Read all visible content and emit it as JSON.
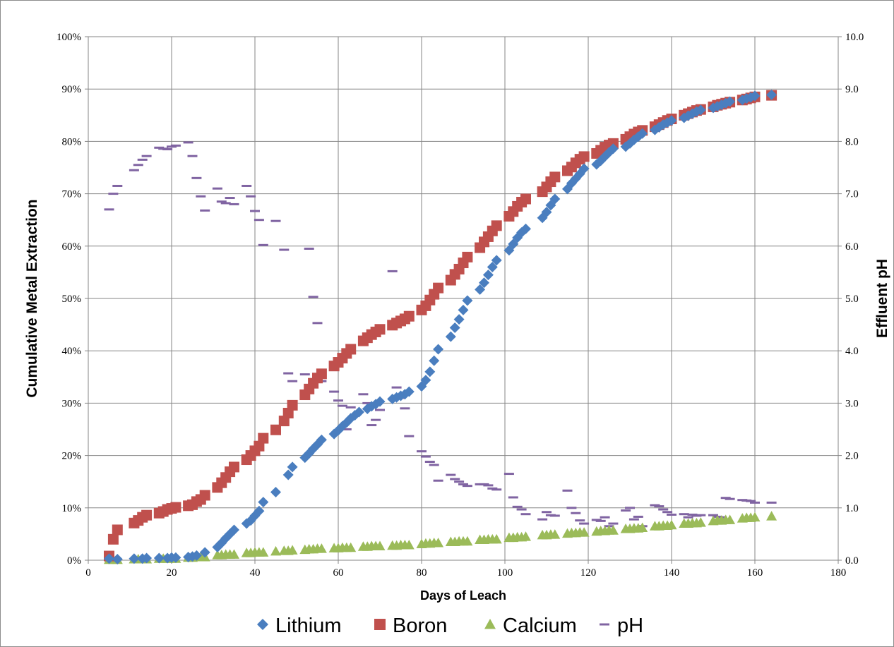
{
  "chart_data": {
    "type": "scatter",
    "xlabel": "Days of Leach",
    "ylabel": "Cumulative Metal Extraction",
    "y2label": "Effluent pH",
    "xlim": [
      0,
      180
    ],
    "ylim": [
      0,
      100
    ],
    "y2lim": [
      0,
      10
    ],
    "x_ticks": [
      "0",
      "20",
      "40",
      "60",
      "80",
      "100",
      "120",
      "140",
      "160",
      "180"
    ],
    "y_ticks": [
      "0%",
      "10%",
      "20%",
      "30%",
      "40%",
      "50%",
      "60%",
      "70%",
      "80%",
      "90%",
      "100%"
    ],
    "y2_ticks": [
      "0.0",
      "1.0",
      "2.0",
      "3.0",
      "4.0",
      "5.0",
      "6.0",
      "7.0",
      "8.0",
      "9.0",
      "10.0"
    ],
    "grid": true,
    "legend_position": "bottom",
    "series": [
      {
        "name": "Lithium",
        "axis": "left",
        "marker": "diamond",
        "color": "#4a7ebf",
        "x": [
          5,
          7,
          11,
          13,
          14,
          17,
          19,
          20,
          21,
          24,
          25,
          26,
          28,
          31,
          32,
          33,
          34,
          35,
          38,
          39,
          40,
          41,
          42,
          45,
          48,
          49,
          52,
          53,
          54,
          55,
          56,
          59,
          60,
          61,
          62,
          63,
          64,
          65,
          67,
          68,
          69,
          70,
          73,
          74,
          75,
          76,
          77,
          80,
          81,
          82,
          83,
          84,
          87,
          88,
          89,
          90,
          91,
          94,
          95,
          96,
          97,
          98,
          101,
          102,
          103,
          104,
          105,
          109,
          110,
          111,
          112,
          115,
          116,
          117,
          118,
          119,
          122,
          123,
          124,
          125,
          126,
          129,
          130,
          131,
          132,
          133,
          136,
          137,
          138,
          139,
          140,
          143,
          144,
          145,
          146,
          147,
          150,
          151,
          152,
          153,
          154,
          157,
          158,
          159,
          160,
          164
        ],
        "y": [
          0.3,
          0.2,
          0.3,
          0.3,
          0.4,
          0.4,
          0.4,
          0.5,
          0.5,
          0.6,
          0.7,
          0.9,
          1.5,
          2.5,
          3.3,
          4.2,
          5.0,
          5.8,
          7.0,
          7.6,
          8.5,
          9.4,
          11.1,
          13.0,
          16.3,
          17.8,
          19.6,
          20.4,
          21.3,
          22.1,
          23.0,
          24.1,
          24.8,
          25.6,
          26.3,
          27.1,
          27.7,
          28.3,
          28.9,
          29.4,
          29.8,
          30.3,
          30.8,
          31.1,
          31.4,
          31.7,
          32.2,
          33.2,
          34.4,
          36.0,
          38.1,
          40.3,
          42.7,
          44.4,
          46.0,
          47.8,
          49.6,
          51.7,
          53.0,
          54.5,
          56.0,
          57.3,
          59.2,
          60.4,
          61.6,
          62.6,
          63.3,
          65.4,
          66.5,
          67.8,
          69.0,
          70.9,
          72.0,
          72.9,
          73.8,
          74.8,
          75.6,
          76.3,
          77.1,
          77.9,
          78.6,
          79.0,
          79.6,
          80.3,
          80.9,
          81.5,
          82.2,
          82.7,
          83.2,
          83.6,
          84.0,
          84.5,
          84.9,
          85.3,
          85.7,
          86.0,
          86.4,
          86.7,
          87.0,
          87.3,
          87.6,
          87.9,
          88.2,
          88.4,
          88.7,
          88.9
        ]
      },
      {
        "name": "Boron",
        "axis": "left",
        "marker": "square",
        "color": "#c0504d",
        "x": [
          5,
          6,
          7,
          11,
          12,
          13,
          14,
          17,
          18,
          19,
          20,
          21,
          24,
          25,
          26,
          27,
          28,
          31,
          32,
          33,
          34,
          35,
          38,
          39,
          40,
          41,
          42,
          45,
          47,
          48,
          49,
          52,
          53,
          54,
          55,
          56,
          59,
          60,
          61,
          62,
          63,
          66,
          67,
          68,
          69,
          70,
          73,
          74,
          75,
          76,
          77,
          80,
          81,
          82,
          83,
          84,
          87,
          88,
          89,
          90,
          91,
          94,
          95,
          96,
          97,
          98,
          101,
          102,
          103,
          104,
          105,
          109,
          110,
          111,
          112,
          115,
          116,
          117,
          118,
          119,
          122,
          123,
          124,
          125,
          126,
          129,
          130,
          131,
          132,
          133,
          136,
          137,
          138,
          139,
          140,
          143,
          144,
          145,
          146,
          147,
          150,
          151,
          152,
          153,
          154,
          157,
          158,
          159,
          160,
          164
        ],
        "y": [
          0.8,
          4.0,
          5.8,
          7.1,
          7.6,
          8.2,
          8.6,
          9.0,
          9.3,
          9.7,
          9.9,
          10.1,
          10.4,
          10.6,
          11.2,
          11.6,
          12.4,
          13.9,
          14.8,
          15.8,
          16.9,
          17.8,
          19.2,
          20.0,
          20.9,
          21.8,
          23.3,
          24.9,
          26.6,
          28.1,
          29.6,
          31.6,
          32.7,
          33.8,
          34.8,
          35.6,
          37.1,
          37.8,
          38.6,
          39.5,
          40.3,
          41.9,
          42.5,
          43.1,
          43.6,
          44.1,
          44.9,
          45.3,
          45.7,
          46.1,
          46.6,
          47.8,
          48.6,
          49.7,
          50.8,
          52.0,
          53.5,
          54.6,
          55.6,
          56.8,
          57.9,
          59.7,
          60.8,
          61.8,
          62.9,
          63.9,
          65.7,
          66.6,
          67.6,
          68.4,
          69.0,
          70.4,
          71.3,
          72.3,
          73.2,
          74.4,
          75.1,
          75.9,
          76.6,
          77.1,
          77.7,
          78.3,
          78.9,
          79.3,
          79.6,
          80.4,
          80.9,
          81.4,
          81.8,
          82.1,
          82.8,
          83.2,
          83.6,
          84.0,
          84.3,
          85.0,
          85.3,
          85.6,
          85.9,
          86.1,
          86.6,
          86.9,
          87.1,
          87.3,
          87.5,
          87.9,
          88.1,
          88.3,
          88.5,
          88.8
        ]
      },
      {
        "name": "Calcium",
        "axis": "left",
        "marker": "triangle",
        "color": "#9bbb59",
        "x": [
          5,
          6,
          7,
          11,
          12,
          13,
          14,
          17,
          18,
          19,
          20,
          21,
          24,
          25,
          26,
          27,
          28,
          31,
          32,
          33,
          34,
          35,
          38,
          39,
          40,
          41,
          42,
          45,
          47,
          48,
          49,
          52,
          53,
          54,
          55,
          56,
          59,
          60,
          61,
          62,
          63,
          66,
          67,
          68,
          69,
          70,
          73,
          74,
          75,
          76,
          77,
          80,
          81,
          82,
          83,
          84,
          87,
          88,
          89,
          90,
          91,
          94,
          95,
          96,
          97,
          98,
          101,
          102,
          103,
          104,
          105,
          109,
          110,
          111,
          112,
          115,
          116,
          117,
          118,
          119,
          122,
          123,
          124,
          125,
          126,
          129,
          130,
          131,
          132,
          133,
          136,
          137,
          138,
          139,
          140,
          143,
          144,
          145,
          146,
          147,
          150,
          151,
          152,
          153,
          154,
          157,
          158,
          159,
          160,
          164
        ],
        "y": [
          0.1,
          0.1,
          0.1,
          0.2,
          0.2,
          0.2,
          0.2,
          0.3,
          0.3,
          0.3,
          0.3,
          0.3,
          0.5,
          0.5,
          0.6,
          0.6,
          0.6,
          1.0,
          1.0,
          1.1,
          1.1,
          1.1,
          1.4,
          1.4,
          1.5,
          1.5,
          1.5,
          1.7,
          1.8,
          1.8,
          1.9,
          2.0,
          2.1,
          2.1,
          2.2,
          2.2,
          2.3,
          2.3,
          2.4,
          2.4,
          2.4,
          2.6,
          2.6,
          2.7,
          2.7,
          2.7,
          2.8,
          2.8,
          2.9,
          2.9,
          2.9,
          3.1,
          3.2,
          3.2,
          3.3,
          3.3,
          3.5,
          3.5,
          3.6,
          3.6,
          3.6,
          3.9,
          3.9,
          4.0,
          4.0,
          4.0,
          4.3,
          4.3,
          4.4,
          4.4,
          4.5,
          4.8,
          4.8,
          4.9,
          4.9,
          5.1,
          5.2,
          5.2,
          5.3,
          5.3,
          5.5,
          5.6,
          5.6,
          5.7,
          5.7,
          6.0,
          6.0,
          6.1,
          6.1,
          6.2,
          6.5,
          6.5,
          6.6,
          6.6,
          6.7,
          7.0,
          7.0,
          7.1,
          7.1,
          7.2,
          7.5,
          7.6,
          7.6,
          7.7,
          7.7,
          8.0,
          8.1,
          8.1,
          8.2,
          8.4
        ]
      },
      {
        "name": "pH",
        "axis": "right",
        "marker": "dash",
        "color": "#8064a2",
        "x": [
          5,
          6,
          7,
          11,
          12,
          13,
          14,
          17,
          18,
          19,
          20,
          21,
          24,
          25,
          26,
          27,
          28,
          31,
          32,
          33,
          34,
          35,
          38,
          39,
          40,
          41,
          42,
          45,
          47,
          48,
          49,
          52,
          53,
          54,
          55,
          56,
          59,
          60,
          61,
          62,
          63,
          66,
          67,
          68,
          69,
          70,
          73,
          74,
          75,
          76,
          77,
          80,
          81,
          82,
          83,
          84,
          87,
          88,
          89,
          90,
          91,
          94,
          95,
          96,
          97,
          98,
          101,
          102,
          103,
          104,
          105,
          109,
          110,
          111,
          112,
          115,
          116,
          117,
          118,
          119,
          122,
          123,
          124,
          125,
          126,
          129,
          130,
          131,
          132,
          133,
          136,
          137,
          138,
          139,
          140,
          143,
          144,
          145,
          146,
          147,
          150,
          151,
          152,
          153,
          154,
          157,
          158,
          159,
          160,
          164
        ],
        "y": [
          6.7,
          7.0,
          7.15,
          7.45,
          7.55,
          7.65,
          7.72,
          7.88,
          7.86,
          7.85,
          7.9,
          7.92,
          7.98,
          7.72,
          7.3,
          6.95,
          6.68,
          7.1,
          6.85,
          6.82,
          6.92,
          6.8,
          7.15,
          6.95,
          6.67,
          6.5,
          6.02,
          6.48,
          5.93,
          3.57,
          3.42,
          3.55,
          5.95,
          5.03,
          4.53,
          3.42,
          3.22,
          3.05,
          2.95,
          2.5,
          2.92,
          3.17,
          3.0,
          2.58,
          2.68,
          2.87,
          5.52,
          3.3,
          3.1,
          2.9,
          2.37,
          2.08,
          1.98,
          1.88,
          1.82,
          1.52,
          1.63,
          1.55,
          1.5,
          1.45,
          1.42,
          1.45,
          1.45,
          1.43,
          1.37,
          1.35,
          1.65,
          1.2,
          1.02,
          0.97,
          0.88,
          0.78,
          0.92,
          0.86,
          0.85,
          1.33,
          1.0,
          0.9,
          0.76,
          0.7,
          0.77,
          0.75,
          0.82,
          0.65,
          0.7,
          0.95,
          1.0,
          0.78,
          0.83,
          0.65,
          1.05,
          1.03,
          0.97,
          0.92,
          0.87,
          0.88,
          0.82,
          0.87,
          0.85,
          0.86,
          0.86,
          0.83,
          0.82,
          1.19,
          1.17,
          1.15,
          1.14,
          1.13,
          1.1,
          1.1
        ]
      }
    ]
  }
}
